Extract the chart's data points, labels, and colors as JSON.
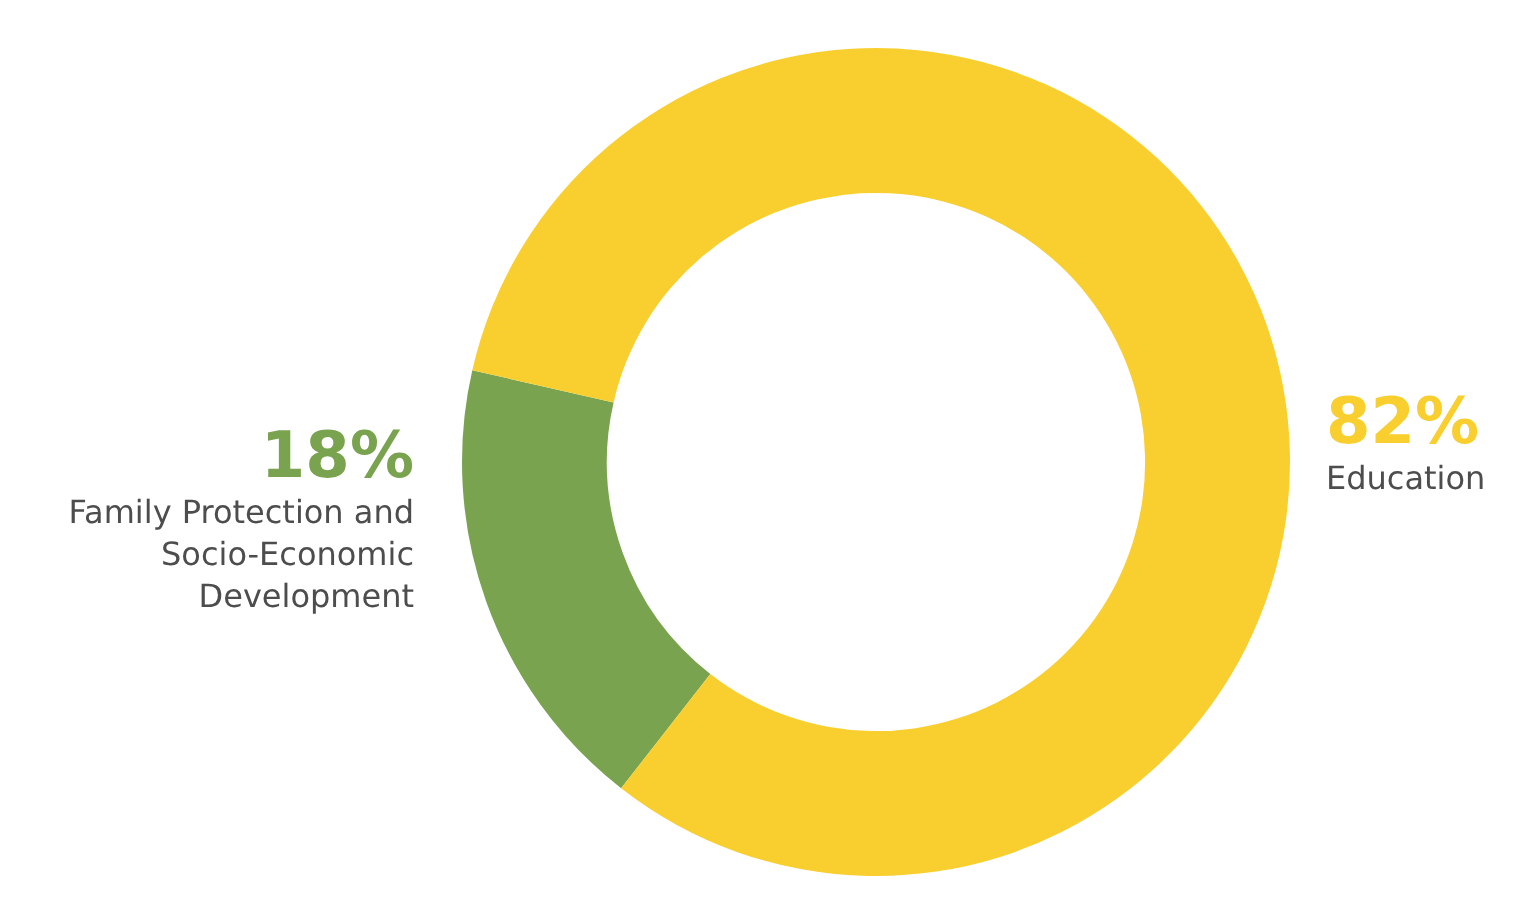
{
  "chart_data": {
    "type": "donut",
    "categories": [
      "Family Protection and Socio-Economic Development",
      "Education"
    ],
    "values": [
      18,
      82
    ],
    "value_labels": [
      "18%",
      "82%"
    ],
    "colors": [
      "#7aa34f",
      "#f9cf2f"
    ],
    "legend": false
  }
}
